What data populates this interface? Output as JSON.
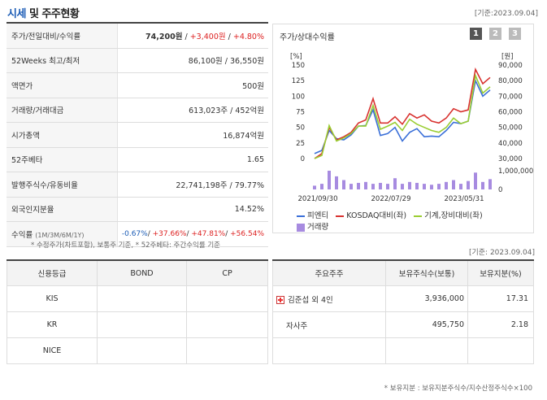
{
  "header": {
    "title_main": "시세",
    "title_rest": " 및 주주현황",
    "date": "[기준:2023.09.04]"
  },
  "info_rows": [
    {
      "label": "주가/전일대비/수익률",
      "value_price": "74,200원",
      "value_change": "+3,400원",
      "value_rate": "+4.80%"
    },
    {
      "label": "52Weeks 최고/최저",
      "value": "86,100원 / 36,550원"
    },
    {
      "label": "액면가",
      "value": "500원"
    },
    {
      "label": "거래량/거래대금",
      "value": "613,023주 / 452억원"
    },
    {
      "label": "시가총액",
      "value": "16,874억원"
    },
    {
      "label": "52주베타",
      "value": "1.65"
    },
    {
      "label": "발행주식수/유동비율",
      "value": "22,741,198주 / 79.77%"
    },
    {
      "label": "외국인지분율",
      "value": "14.52%"
    },
    {
      "label": "수익률",
      "period": "(1M/3M/6M/1Y)",
      "r1": "-0.67%",
      "r2": "+37.66%",
      "r3": "+47.81%",
      "r4": "+56.54%"
    }
  ],
  "note_left": "* 수정주가(차트포함), 보통주 기준, * 52주베타: 주간수익률 기준",
  "chart": {
    "title": "주가/상대수익률",
    "pages": [
      "1",
      "2",
      "3"
    ],
    "left_unit": "[%]",
    "right_unit": "[원]",
    "colors": {
      "stock": "#3a6fd8",
      "kosdaq": "#d8322f",
      "sector": "#9acd32",
      "volume": "#a78be0"
    },
    "legend": {
      "stock": "피엔티",
      "kosdaq": "KOSDAQ대비(좌)",
      "sector": "기계,장비대비(좌)",
      "volume": "거래량"
    }
  },
  "chart_data": {
    "type": "line",
    "x": [
      "2021/09",
      "2021/10",
      "2021/11",
      "2021/12",
      "2022/01",
      "2022/02",
      "2022/03",
      "2022/04",
      "2022/05",
      "2022/06",
      "2022/07",
      "2022/08",
      "2022/09",
      "2022/10",
      "2022/11",
      "2022/12",
      "2023/01",
      "2023/02",
      "2023/03",
      "2023/04",
      "2023/05",
      "2023/06",
      "2023/07",
      "2023/08",
      "2023/09"
    ],
    "x_tick_labels": [
      "2021/09/30",
      "2022/07/29",
      "2023/05/31"
    ],
    "y_left_ticks": [
      "150",
      "125",
      "100",
      "75",
      "50",
      "25",
      "0"
    ],
    "y_right_ticks": [
      "90,000",
      "80,000",
      "70,000",
      "60,000",
      "50,000",
      "40,000",
      "30,000"
    ],
    "volume_ticks": [
      "1,000,000",
      "0"
    ],
    "ylim_left": [
      0,
      150
    ],
    "series": [
      {
        "name": "피엔티",
        "values": [
          8,
          13,
          45,
          32,
          30,
          38,
          52,
          53,
          78,
          37,
          40,
          50,
          28,
          42,
          48,
          35,
          36,
          35,
          45,
          58,
          56,
          60,
          125,
          100,
          110
        ]
      },
      {
        "name": "KOSDAQ대비(좌)",
        "values": [
          0,
          8,
          50,
          30,
          35,
          42,
          57,
          62,
          96,
          57,
          57,
          67,
          55,
          72,
          65,
          70,
          60,
          57,
          65,
          80,
          75,
          78,
          143,
          120,
          130
        ]
      },
      {
        "name": "기계,장비대비(좌)",
        "values": [
          0,
          5,
          53,
          28,
          33,
          40,
          52,
          52,
          85,
          47,
          52,
          58,
          45,
          63,
          55,
          50,
          45,
          42,
          50,
          65,
          56,
          60,
          133,
          105,
          115
        ]
      }
    ],
    "volume": [
      0.2,
      0.3,
      1.0,
      0.7,
      0.5,
      0.3,
      0.35,
      0.4,
      0.3,
      0.35,
      0.3,
      0.6,
      0.3,
      0.4,
      0.35,
      0.3,
      0.25,
      0.3,
      0.4,
      0.5,
      0.3,
      0.45,
      0.9,
      0.4,
      0.55
    ]
  },
  "date2": "[기준: 2023.09.04]",
  "credit": {
    "headers": [
      "신용등급",
      "BOND",
      "CP"
    ],
    "rows": [
      [
        "KIS",
        "",
        ""
      ],
      [
        "KR",
        "",
        ""
      ],
      [
        "NICE",
        "",
        ""
      ]
    ]
  },
  "holders": {
    "headers": [
      "주요주주",
      "보유주식수(보통)",
      "보유지분(%)"
    ],
    "rows": [
      {
        "name": "김준섭 외 4인",
        "shares": "3,936,000",
        "pct": "17.31",
        "expandable": true
      },
      {
        "name": "자사주",
        "shares": "495,750",
        "pct": "2.18",
        "expandable": false
      }
    ]
  },
  "note_right": "* 보유지분 : 보유지분주식수/지수산정주식수×100"
}
